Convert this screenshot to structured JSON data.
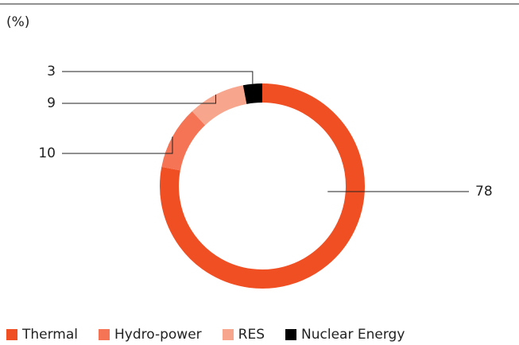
{
  "chart_data": {
    "type": "donut",
    "unit_label": "(%)",
    "categories": [
      "Thermal",
      "Hydro-power",
      "RES",
      "Nuclear Energy"
    ],
    "values": [
      78,
      10,
      9,
      3
    ],
    "colors": [
      "#f04e23",
      "#f47455",
      "#f8a58d",
      "#000000"
    ]
  }
}
